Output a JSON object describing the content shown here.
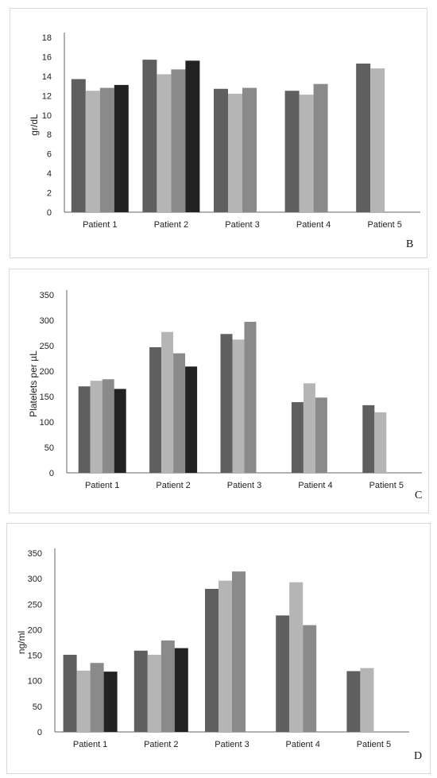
{
  "colors": {
    "series": [
      "#5f5f5f",
      "#b5b5b5",
      "#8a8a8a",
      "#222222"
    ],
    "axis": "#666666"
  },
  "chart_data": [
    {
      "type": "bar",
      "panel_letter": "B",
      "ylabel": "gr/dL",
      "ylim": [
        0,
        18
      ],
      "yticks": [
        0,
        2,
        4,
        6,
        8,
        10,
        12,
        14,
        16,
        18
      ],
      "grid": false,
      "categories": [
        "Patient 1",
        "Patient 2",
        "Patient 3",
        "Patient 4",
        "Patient 5"
      ],
      "series": [
        {
          "values": [
            13.7,
            15.7,
            12.7,
            12.5,
            15.3
          ]
        },
        {
          "values": [
            12.5,
            14.2,
            12.2,
            12.1,
            14.8
          ]
        },
        {
          "values": [
            12.8,
            14.7,
            12.8,
            13.2,
            null
          ]
        },
        {
          "values": [
            13.1,
            15.6,
            null,
            null,
            null
          ]
        }
      ]
    },
    {
      "type": "bar",
      "panel_letter": "C",
      "ylabel": "Platelets per µL",
      "ylim": [
        0,
        350
      ],
      "yticks": [
        0,
        50,
        100,
        150,
        200,
        250,
        300,
        350
      ],
      "grid": false,
      "categories": [
        "Patient 1",
        "Patient 2",
        "Patient 3",
        "Patient 4",
        "Patient 5"
      ],
      "series": [
        {
          "values": [
            170,
            247,
            273,
            139,
            133
          ]
        },
        {
          "values": [
            181,
            277,
            262,
            176,
            119
          ]
        },
        {
          "values": [
            184,
            235,
            297,
            148,
            null
          ]
        },
        {
          "values": [
            165,
            209,
            null,
            null,
            null
          ]
        }
      ]
    },
    {
      "type": "bar",
      "panel_letter": "D",
      "ylabel": "ng/ml",
      "ylim": [
        0,
        350
      ],
      "yticks": [
        0,
        50,
        100,
        150,
        200,
        250,
        300,
        350
      ],
      "grid": false,
      "categories": [
        "Patient 1",
        "Patient 2",
        "Patient 3",
        "Patient 4",
        "Patient 5"
      ],
      "series": [
        {
          "values": [
            151,
            159,
            280,
            228,
            119
          ]
        },
        {
          "values": [
            120,
            151,
            296,
            293,
            125
          ]
        },
        {
          "values": [
            135,
            179,
            314,
            209,
            null
          ]
        },
        {
          "values": [
            118,
            164,
            null,
            null,
            null
          ]
        }
      ]
    }
  ]
}
